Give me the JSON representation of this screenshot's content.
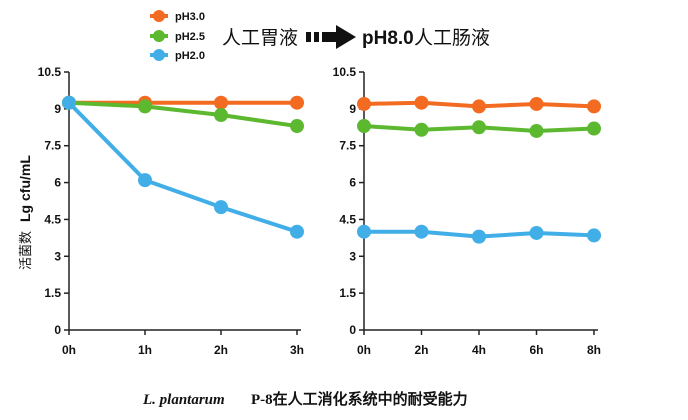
{
  "legend": [
    {
      "name": "pH3.0",
      "color": "#F26B21"
    },
    {
      "name": "pH2.5",
      "color": "#5CB82E"
    },
    {
      "name": "pH2.0",
      "color": "#41AEE8"
    }
  ],
  "header": {
    "stage1": "人工胃液",
    "stage2_ph": "pH8.0",
    "stage2_cn": "人工肠液"
  },
  "ylabel": {
    "cn": "活菌数",
    "en": "Lg cfu/mL"
  },
  "caption": {
    "species": "L. plantarum",
    "rest": "P-8在人工消化系统中的耐受能力"
  },
  "chart_data": [
    {
      "type": "line",
      "categories": [
        "0h",
        "1h",
        "2h",
        "3h"
      ],
      "ylim": [
        0,
        10.5
      ],
      "yticks": [
        "0",
        "1.5",
        "3",
        "4.5",
        "6",
        "7.5",
        "9",
        "10.5"
      ],
      "series": [
        {
          "name": "pH3.0",
          "color": "#F26B21",
          "values": [
            9.25,
            9.25,
            9.25,
            9.25
          ]
        },
        {
          "name": "pH2.5",
          "color": "#5CB82E",
          "values": [
            9.25,
            9.1,
            8.75,
            8.3
          ]
        },
        {
          "name": "pH2.0",
          "color": "#41AEE8",
          "values": [
            9.25,
            6.1,
            5.0,
            4.0
          ]
        }
      ]
    },
    {
      "type": "line",
      "categories": [
        "0h",
        "2h",
        "4h",
        "6h",
        "8h"
      ],
      "ylim": [
        0,
        10.5
      ],
      "yticks": [
        "0",
        "1.5",
        "3",
        "4.5",
        "6",
        "7.5",
        "9",
        "10.5"
      ],
      "series": [
        {
          "name": "pH3.0",
          "color": "#F26B21",
          "values": [
            9.2,
            9.25,
            9.1,
            9.2,
            9.1
          ]
        },
        {
          "name": "pH2.5",
          "color": "#5CB82E",
          "values": [
            8.3,
            8.15,
            8.25,
            8.1,
            8.2
          ]
        },
        {
          "name": "pH2.0",
          "color": "#41AEE8",
          "values": [
            4.0,
            4.0,
            3.8,
            3.95,
            3.85
          ]
        }
      ]
    }
  ]
}
